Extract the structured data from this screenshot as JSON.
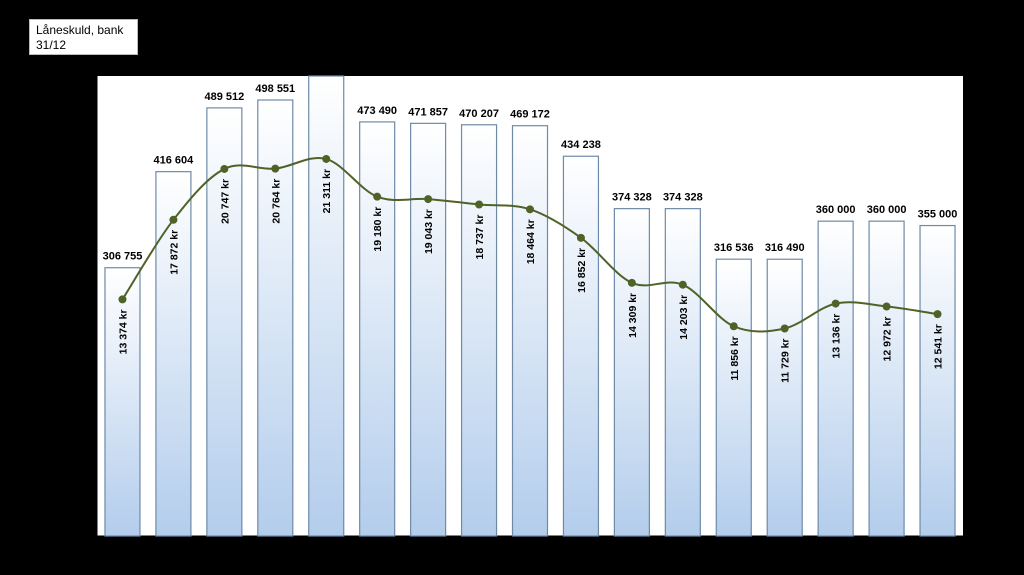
{
  "chart_data": {
    "type": "bar",
    "legend": {
      "line1": "Låneskuld, bank",
      "line2": "31/12"
    },
    "colors": {
      "background": "#000000",
      "plot_area": "#ffffff",
      "bar_fill_top": "#ffffff",
      "bar_fill_bottom": "#b3cdec",
      "bar_edge": "#6e8aa8",
      "line": "#4f6228",
      "marker": "#4f6228"
    },
    "series": [
      {
        "type": "bar",
        "values": [
          306755,
          416604,
          489512,
          498551,
          526000,
          473490,
          471857,
          470207,
          469172,
          434238,
          374328,
          374328,
          316536,
          316490,
          360000,
          360000,
          355000
        ],
        "labels": [
          "306 755",
          "416 604",
          "489 512",
          "498 551",
          "",
          "473 490",
          "471 857",
          "470 207",
          "469 172",
          "434 238",
          "374 328",
          "374 328",
          "316 536",
          "316 490",
          "360 000",
          "360 000",
          "355 000"
        ]
      },
      {
        "type": "line",
        "smooth": true,
        "values": [
          13374,
          17872,
          20747,
          20764,
          21311,
          19180,
          19043,
          18737,
          18464,
          16852,
          14309,
          14203,
          11856,
          11729,
          13136,
          12972,
          12541
        ],
        "labels": [
          "13 374 kr",
          "17 872 kr",
          "20 747 kr",
          "20 764 kr",
          "21 311 kr",
          "19 180 kr",
          "19 043 kr",
          "18 737 kr",
          "18 464 kr",
          "16 852 kr",
          "14 309 kr",
          "14 203 kr",
          "11 856 kr",
          "11 729 kr",
          "13 136 kr",
          "12 972 kr",
          "12 541 kr"
        ]
      }
    ],
    "bar_ylim": [
      0,
      526000
    ],
    "line_ylim": [
      0,
      26000
    ],
    "grid": false,
    "legend_placement": "top-left"
  }
}
